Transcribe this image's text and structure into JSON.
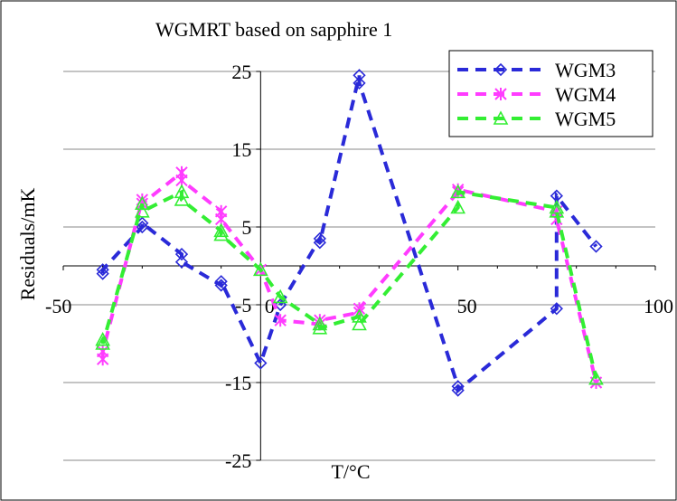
{
  "chart_data": {
    "type": "line",
    "title": "WGMRT based on sapphire 1",
    "xlabel": "T/°C",
    "ylabel": "Residuals/mK",
    "xlim": [
      -50,
      100
    ],
    "ylim": [
      -25,
      25
    ],
    "x_ticks": [
      -50,
      0,
      50,
      100
    ],
    "y_ticks": [
      25,
      15,
      5,
      -5,
      -15,
      -25
    ],
    "y_tick_labels": [
      "25",
      "15",
      "5",
      "-5",
      "-15",
      "-25"
    ],
    "x_tick_labels": [
      "-50",
      "0",
      "50",
      "100"
    ],
    "y_minor_labels": [],
    "grid": "horizontal",
    "legend_position": "top-right",
    "series": [
      {
        "name": "WGM3",
        "color": "#2a2ad8",
        "marker": "diamond",
        "points": [
          [
            -40,
            -1.0
          ],
          [
            -40,
            -0.5
          ],
          [
            -30,
            5.0
          ],
          [
            -30,
            5.5
          ],
          [
            -20,
            1.5
          ],
          [
            -20,
            0.5
          ],
          [
            -10,
            -2.5
          ],
          [
            -10,
            -2.0
          ],
          [
            0,
            -12.5
          ],
          [
            5,
            -5.0
          ],
          [
            15,
            3.5
          ],
          [
            15,
            3.0
          ],
          [
            25,
            24.5
          ],
          [
            25,
            23.5
          ],
          [
            50,
            -15.5
          ],
          [
            50,
            -16.0
          ],
          [
            75,
            -5.5
          ],
          [
            75,
            9.0
          ],
          [
            85,
            2.5
          ]
        ]
      },
      {
        "name": "WGM4",
        "color": "#ff3cff",
        "marker": "asterisk",
        "points": [
          [
            -40,
            -12.0
          ],
          [
            -40,
            -11.0
          ],
          [
            -30,
            8.5
          ],
          [
            -30,
            8.0
          ],
          [
            -20,
            12.0
          ],
          [
            -20,
            11.0
          ],
          [
            -10,
            7.0
          ],
          [
            -10,
            6.0
          ],
          [
            0,
            -0.5
          ],
          [
            5,
            -7.0
          ],
          [
            15,
            -7.5
          ],
          [
            15,
            -7.0
          ],
          [
            25,
            -6.0
          ],
          [
            25,
            -5.5
          ],
          [
            50,
            9.5
          ],
          [
            50,
            9.8
          ],
          [
            75,
            7.0
          ],
          [
            75,
            6.0
          ],
          [
            85,
            -15.0
          ]
        ]
      },
      {
        "name": "WGM5",
        "color": "#33ee33",
        "marker": "triangle",
        "points": [
          [
            -40,
            -9.5
          ],
          [
            -40,
            -10.0
          ],
          [
            -30,
            8.0
          ],
          [
            -30,
            7.0
          ],
          [
            -20,
            9.5
          ],
          [
            -20,
            8.5
          ],
          [
            -10,
            4.5
          ],
          [
            -10,
            4.0
          ],
          [
            0,
            -0.5
          ],
          [
            5,
            -4.0
          ],
          [
            15,
            -7.5
          ],
          [
            15,
            -8.0
          ],
          [
            25,
            -6.5
          ],
          [
            25,
            -7.5
          ],
          [
            50,
            7.5
          ],
          [
            50,
            9.5
          ],
          [
            75,
            7.5
          ],
          [
            75,
            7.0
          ],
          [
            85,
            -14.5
          ]
        ]
      }
    ]
  }
}
